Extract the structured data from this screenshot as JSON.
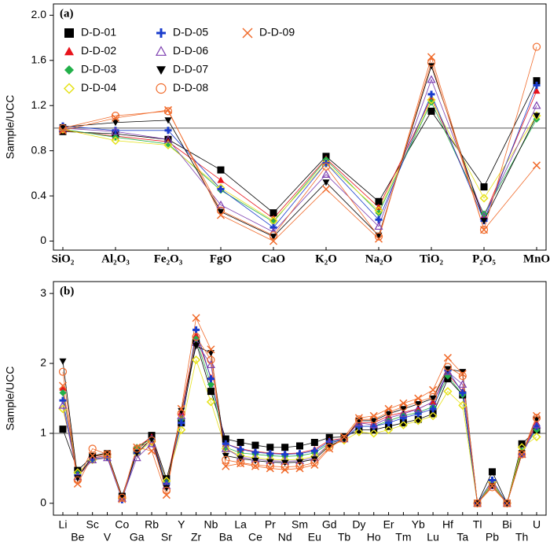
{
  "chart_data": [
    {
      "type": "line",
      "panel_label": "(a)",
      "y_label": "Sample/UCC",
      "hline": 1,
      "legend": "upper-left",
      "categories": [
        "SiO₂",
        "Al₂O₃",
        "Fe₂O₃",
        "FgO",
        "CaO",
        "K₂O",
        "Na₂O",
        "TiO₂",
        "P₂O₅",
        "MnO"
      ],
      "ylim": [
        -0.08,
        2.1
      ],
      "yticks": [
        0,
        0.4,
        0.8,
        1.2,
        1.6,
        {
          "value": 2,
          "label": "2.0"
        }
      ],
      "series": [
        {
          "name": "D-D-01",
          "color": "#000000",
          "marker": "square",
          "values": [
            0.97,
            0.95,
            0.9,
            0.63,
            0.25,
            0.75,
            0.35,
            1.15,
            0.48,
            1.42
          ]
        },
        {
          "name": "D-D-02",
          "color": "#e8141c",
          "marker": "triangle",
          "values": [
            0.98,
            0.93,
            0.88,
            0.54,
            0.2,
            0.73,
            0.3,
            1.27,
            0.22,
            1.33
          ]
        },
        {
          "name": "D-D-03",
          "color": "#22b04a",
          "marker": "diamond",
          "values": [
            0.99,
            0.92,
            0.86,
            0.45,
            0.17,
            0.72,
            0.25,
            1.23,
            0.24,
            1.08
          ]
        },
        {
          "name": "D-D-04",
          "color": "#e6e21a",
          "marker": "diamond-open",
          "values": [
            0.99,
            0.89,
            0.85,
            0.47,
            0.18,
            0.69,
            0.27,
            1.25,
            0.38,
            1.11
          ]
        },
        {
          "name": "D-D-05",
          "color": "#1a3ccc",
          "marker": "plus",
          "values": [
            1.02,
            0.98,
            0.98,
            0.46,
            0.12,
            0.69,
            0.19,
            1.3,
            0.18,
            1.38
          ]
        },
        {
          "name": "D-D-06",
          "color": "#7d3fb0",
          "marker": "triangle-open",
          "values": [
            1.0,
            0.97,
            0.9,
            0.32,
            0.08,
            0.59,
            0.13,
            1.43,
            0.22,
            1.2
          ]
        },
        {
          "name": "D-D-07",
          "color": "#000000",
          "marker": "triangle-down",
          "values": [
            1.01,
            1.05,
            1.07,
            0.26,
            0.04,
            0.52,
            0.05,
            1.55,
            0.18,
            1.11
          ]
        },
        {
          "name": "D-D-08",
          "color": "#f06a2a",
          "marker": "circle-open",
          "values": [
            1.0,
            1.11,
            1.15,
            0.27,
            0.05,
            0.66,
            0.04,
            1.58,
            0.1,
            1.72
          ]
        },
        {
          "name": "D-D-09",
          "color": "#f06a2a",
          "marker": "x",
          "values": [
            0.98,
            1.09,
            1.16,
            0.23,
            0.0,
            0.46,
            0.02,
            1.63,
            0.1,
            0.67
          ]
        }
      ]
    },
    {
      "type": "line",
      "panel_label": "(b)",
      "y_label": "Sample/UCC",
      "hline": 1,
      "categories": [
        "Li",
        "Be",
        "Sc",
        "V",
        "Co",
        "Ga",
        "Rb",
        "Sr",
        "Y",
        "Zr",
        "Nb",
        "Ba",
        "La",
        "Ce",
        "Pr",
        "Nd",
        "Sm",
        "Eu",
        "Gd",
        "Tb",
        "Dy",
        "Ho",
        "Er",
        "Tm",
        "Yb",
        "Lu",
        "Hf",
        "Ta",
        "Tl",
        "Pb",
        "Bi",
        "Th",
        "U"
      ],
      "ylim": [
        -0.17,
        3.17
      ],
      "yticks": [
        0,
        1,
        2,
        3
      ],
      "series": [
        {
          "color": "#000000",
          "marker": "square",
          "values": [
            1.06,
            0.47,
            0.67,
            0.7,
            0.1,
            0.75,
            0.97,
            0.35,
            1.15,
            2.3,
            1.6,
            0.92,
            0.87,
            0.83,
            0.8,
            0.8,
            0.82,
            0.87,
            0.94,
            0.95,
            1.05,
            1.05,
            1.1,
            1.15,
            1.2,
            1.28,
            1.78,
            1.55,
            0,
            0.45,
            0,
            0.85,
            1.05
          ]
        },
        {
          "color": "#e8141c",
          "marker": "triangle",
          "values": [
            1.65,
            0.4,
            0.65,
            0.68,
            0.08,
            0.8,
            0.95,
            0.3,
            1.3,
            2.4,
            1.8,
            0.85,
            0.78,
            0.74,
            0.72,
            0.71,
            0.72,
            0.77,
            0.9,
            0.93,
            1.15,
            1.15,
            1.25,
            1.3,
            1.35,
            1.45,
            1.85,
            1.6,
            0,
            0.3,
            0,
            0.72,
            1.15
          ]
        },
        {
          "color": "#22b04a",
          "marker": "diamond",
          "values": [
            1.58,
            0.42,
            0.62,
            0.66,
            0.06,
            0.8,
            0.92,
            0.3,
            1.2,
            2.35,
            1.7,
            0.8,
            0.72,
            0.7,
            0.68,
            0.67,
            0.68,
            0.72,
            0.86,
            0.92,
            1.1,
            1.1,
            1.18,
            1.25,
            1.3,
            1.38,
            1.82,
            1.55,
            0,
            0.28,
            0,
            0.75,
            1.05
          ]
        },
        {
          "color": "#e6e21a",
          "marker": "diamond-open",
          "values": [
            1.35,
            0.44,
            0.62,
            0.66,
            0.07,
            0.72,
            0.88,
            0.32,
            1.05,
            2.05,
            1.45,
            0.78,
            0.68,
            0.65,
            0.63,
            0.62,
            0.63,
            0.67,
            0.82,
            0.9,
            1.02,
            1.0,
            1.05,
            1.12,
            1.18,
            1.25,
            1.6,
            1.4,
            0,
            0.3,
            0,
            0.8,
            0.95
          ]
        },
        {
          "color": "#1a3ccc",
          "marker": "plus",
          "values": [
            1.47,
            0.4,
            0.64,
            0.66,
            0.05,
            0.72,
            0.92,
            0.28,
            1.15,
            2.48,
            1.78,
            0.85,
            0.77,
            0.73,
            0.71,
            0.7,
            0.71,
            0.75,
            0.88,
            0.92,
            1.1,
            1.1,
            1.15,
            1.22,
            1.28,
            1.35,
            1.9,
            1.58,
            0,
            0.33,
            0,
            0.7,
            1.1
          ]
        },
        {
          "color": "#7d3fb0",
          "marker": "triangle-open",
          "values": [
            1.4,
            0.38,
            0.62,
            0.65,
            0.07,
            0.65,
            0.85,
            0.25,
            1.25,
            2.3,
            1.98,
            0.78,
            0.66,
            0.63,
            0.61,
            0.6,
            0.61,
            0.65,
            0.85,
            0.92,
            1.15,
            1.12,
            1.22,
            1.28,
            1.35,
            1.45,
            1.88,
            1.7,
            0,
            0.25,
            0,
            0.7,
            1.12
          ]
        },
        {
          "color": "#000000",
          "marker": "triangle-down",
          "values": [
            2.03,
            0.36,
            0.68,
            0.72,
            0.1,
            0.72,
            0.92,
            0.22,
            1.32,
            2.25,
            2.15,
            0.68,
            0.64,
            0.61,
            0.59,
            0.58,
            0.59,
            0.63,
            0.82,
            0.92,
            1.18,
            1.18,
            1.28,
            1.35,
            1.42,
            1.5,
            1.92,
            1.88,
            0,
            0.25,
            0,
            0.72,
            1.2
          ]
        },
        {
          "color": "#f06a2a",
          "marker": "circle-open",
          "values": [
            1.88,
            0.33,
            0.78,
            0.7,
            0.08,
            0.78,
            0.9,
            0.18,
            1.28,
            2.38,
            2.05,
            0.62,
            0.58,
            0.55,
            0.53,
            0.52,
            0.53,
            0.58,
            0.8,
            0.92,
            1.2,
            1.2,
            1.3,
            1.38,
            1.45,
            1.52,
            1.95,
            1.82,
            0,
            0.23,
            0,
            0.7,
            1.22
          ]
        },
        {
          "color": "#f06a2a",
          "marker": "x",
          "values": [
            1.68,
            0.28,
            0.68,
            0.7,
            0.06,
            0.8,
            0.75,
            0.12,
            1.35,
            2.65,
            2.2,
            0.53,
            0.57,
            0.53,
            0.5,
            0.48,
            0.5,
            0.55,
            0.78,
            0.95,
            1.22,
            1.25,
            1.35,
            1.43,
            1.5,
            1.62,
            2.08,
            1.85,
            0,
            0.25,
            0,
            0.7,
            1.25
          ]
        }
      ]
    }
  ]
}
